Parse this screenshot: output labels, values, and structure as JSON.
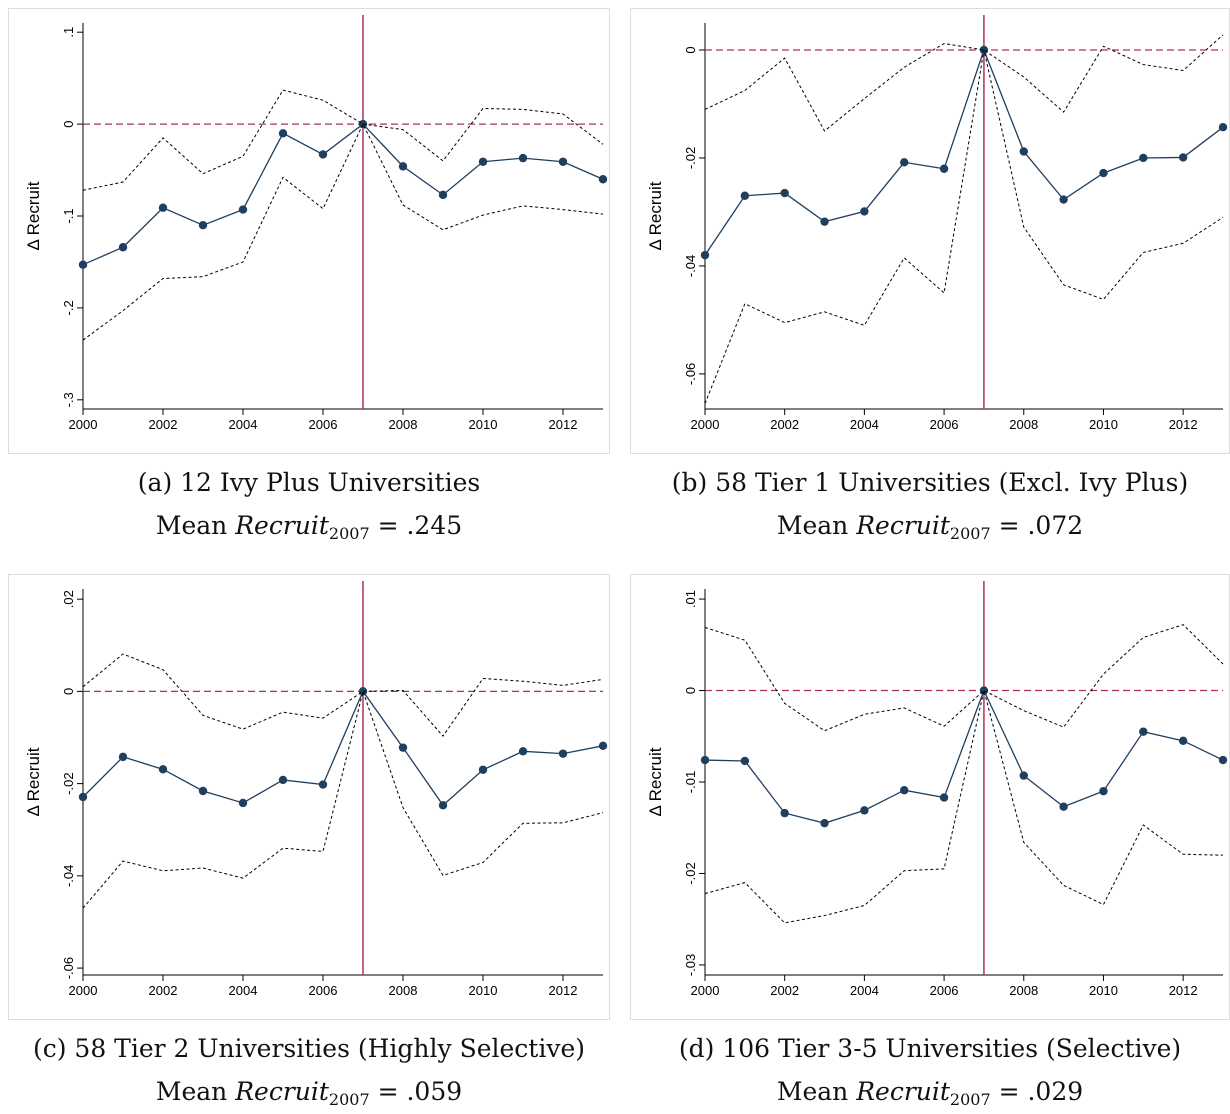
{
  "chart_data": [
    {
      "type": "line",
      "caption": "(a) 12 Ivy Plus Universities",
      "mean_prefix": "Mean ",
      "mean_var": "Recruit",
      "mean_sub": "2007",
      "mean_value": " = .245",
      "ylabel": "Δ Recruit",
      "xlabel": "",
      "x": [
        2000,
        2001,
        2002,
        2003,
        2004,
        2005,
        2006,
        2007,
        2008,
        2009,
        2010,
        2011,
        2012,
        2013
      ],
      "xlim": [
        2000,
        2013
      ],
      "xticks": [
        2000,
        2002,
        2004,
        2006,
        2008,
        2010,
        2012
      ],
      "ylim": [
        -0.31,
        0.11
      ],
      "yticks": [
        -0.3,
        -0.2,
        -0.1,
        0,
        0.1
      ],
      "ytick_labels": [
        "-.3",
        "-.2",
        "-.1",
        "0",
        ".1"
      ],
      "reference_x": 2007,
      "reference_y": 0,
      "series": [
        {
          "role": "estimate",
          "values": [
            -0.153,
            -0.134,
            -0.091,
            -0.11,
            -0.093,
            -0.01,
            -0.033,
            0,
            -0.046,
            -0.077,
            -0.041,
            -0.037,
            -0.041,
            -0.06
          ]
        },
        {
          "role": "upper",
          "values": [
            -0.072,
            -0.063,
            -0.015,
            -0.054,
            -0.035,
            0.037,
            0.026,
            0,
            -0.006,
            -0.04,
            0.017,
            0.016,
            0.011,
            -0.022
          ]
        },
        {
          "role": "lower",
          "values": [
            -0.235,
            -0.203,
            -0.168,
            -0.166,
            -0.15,
            -0.058,
            -0.092,
            0,
            -0.088,
            -0.115,
            -0.099,
            -0.089,
            -0.093,
            -0.098
          ]
        }
      ],
      "colors": {
        "estimate": "#1f3f5f",
        "bounds": "#000000",
        "reference": "#b0305a"
      }
    },
    {
      "type": "line",
      "caption": "(b) 58 Tier 1 Universities (Excl. Ivy Plus)",
      "mean_prefix": "Mean ",
      "mean_var": "Recruit",
      "mean_sub": "2007",
      "mean_value": " = .072",
      "ylabel": "Δ Recruit",
      "xlabel": "",
      "x": [
        2000,
        2001,
        2002,
        2003,
        2004,
        2005,
        2006,
        2007,
        2008,
        2009,
        2010,
        2011,
        2012,
        2013
      ],
      "xlim": [
        2000,
        2013
      ],
      "xticks": [
        2000,
        2002,
        2004,
        2006,
        2008,
        2010,
        2012
      ],
      "ylim": [
        -0.0665,
        0.005
      ],
      "yticks": [
        -0.06,
        -0.04,
        -0.02,
        0
      ],
      "ytick_labels": [
        "-.06",
        "-.04",
        "-.02",
        "0"
      ],
      "reference_x": 2007,
      "reference_y": 0,
      "series": [
        {
          "role": "estimate",
          "values": [
            -0.038,
            -0.027,
            -0.0265,
            -0.0318,
            -0.0299,
            -0.0208,
            -0.022,
            0,
            -0.0188,
            -0.0277,
            -0.0228,
            -0.02,
            -0.0199,
            -0.0143
          ]
        },
        {
          "role": "upper",
          "values": [
            -0.011,
            -0.0075,
            -0.0015,
            -0.015,
            -0.009,
            -0.0032,
            0.0012,
            0,
            -0.005,
            -0.0115,
            0.0007,
            -0.0027,
            -0.0038,
            0.0028
          ]
        },
        {
          "role": "lower",
          "values": [
            -0.0655,
            -0.047,
            -0.0505,
            -0.0485,
            -0.051,
            -0.0385,
            -0.045,
            0,
            -0.0328,
            -0.0435,
            -0.0462,
            -0.0375,
            -0.0358,
            -0.031
          ]
        }
      ],
      "colors": {
        "estimate": "#1f3f5f",
        "bounds": "#000000",
        "reference": "#b0305a"
      }
    },
    {
      "type": "line",
      "caption": "(c) 58 Tier 2 Universities (Highly Selective)",
      "mean_prefix": "Mean ",
      "mean_var": "Recruit",
      "mean_sub": "2007",
      "mean_value": " = .059",
      "ylabel": "Δ Recruit",
      "xlabel": "",
      "x": [
        2000,
        2001,
        2002,
        2003,
        2004,
        2005,
        2006,
        2007,
        2008,
        2009,
        2010,
        2011,
        2012,
        2013
      ],
      "xlim": [
        2000,
        2013
      ],
      "xticks": [
        2000,
        2002,
        2004,
        2006,
        2008,
        2010,
        2012
      ],
      "ylim": [
        -0.0615,
        0.0222
      ],
      "yticks": [
        -0.06,
        -0.04,
        -0.02,
        0,
        0.02
      ],
      "ytick_labels": [
        "-.06",
        "-.04",
        "-.02",
        "0",
        ".02"
      ],
      "reference_x": 2007,
      "reference_y": 0,
      "series": [
        {
          "role": "estimate",
          "values": [
            -0.0229,
            -0.0142,
            -0.0169,
            -0.0216,
            -0.0242,
            -0.0192,
            -0.0202,
            0,
            -0.0122,
            -0.0247,
            -0.017,
            -0.013,
            -0.0135,
            -0.0118
          ]
        },
        {
          "role": "upper",
          "values": [
            0.001,
            0.0081,
            0.0047,
            -0.0052,
            -0.0082,
            -0.0045,
            -0.0058,
            0,
            0.0002,
            -0.0097,
            0.0028,
            0.0022,
            0.0013,
            0.0026
          ]
        },
        {
          "role": "lower",
          "values": [
            -0.047,
            -0.0368,
            -0.0389,
            -0.0383,
            -0.0405,
            -0.034,
            -0.0347,
            0,
            -0.0252,
            -0.0399,
            -0.0371,
            -0.0286,
            -0.0285,
            -0.0263
          ]
        }
      ],
      "colors": {
        "estimate": "#1f3f5f",
        "bounds": "#000000",
        "reference": "#b0305a"
      }
    },
    {
      "type": "line",
      "caption": "(d) 106 Tier 3-5 Universities (Selective)",
      "mean_prefix": "Mean ",
      "mean_var": "Recruit",
      "mean_sub": "2007",
      "mean_value": " = .029",
      "ylabel": "Δ Recruit",
      "xlabel": "",
      "x": [
        2000,
        2001,
        2002,
        2003,
        2004,
        2005,
        2006,
        2007,
        2008,
        2009,
        2010,
        2011,
        2012,
        2013
      ],
      "xlim": [
        2000,
        2013
      ],
      "xticks": [
        2000,
        2002,
        2004,
        2006,
        2008,
        2010,
        2012
      ],
      "ylim": [
        -0.0311,
        0.0111
      ],
      "yticks": [
        -0.03,
        -0.02,
        -0.01,
        0,
        0.01
      ],
      "ytick_labels": [
        "-.03",
        "-.02",
        "-.01",
        "0",
        ".01"
      ],
      "reference_x": 2007,
      "reference_y": 0,
      "series": [
        {
          "role": "estimate",
          "values": [
            -0.0076,
            -0.0077,
            -0.0134,
            -0.0145,
            -0.0131,
            -0.0109,
            -0.0117,
            0,
            -0.0093,
            -0.0127,
            -0.011,
            -0.0045,
            -0.0055,
            -0.0076
          ]
        },
        {
          "role": "upper",
          "values": [
            0.0069,
            0.0055,
            -0.0014,
            -0.0044,
            -0.0026,
            -0.0019,
            -0.0039,
            0,
            -0.0022,
            -0.004,
            0.0018,
            0.0058,
            0.0072,
            0.0029
          ]
        },
        {
          "role": "lower",
          "values": [
            -0.0222,
            -0.021,
            -0.0254,
            -0.0246,
            -0.0235,
            -0.0197,
            -0.0195,
            0,
            -0.0166,
            -0.0213,
            -0.0234,
            -0.0147,
            -0.0179,
            -0.018
          ]
        }
      ],
      "colors": {
        "estimate": "#1f3f5f",
        "bounds": "#000000",
        "reference": "#b0305a"
      }
    }
  ]
}
